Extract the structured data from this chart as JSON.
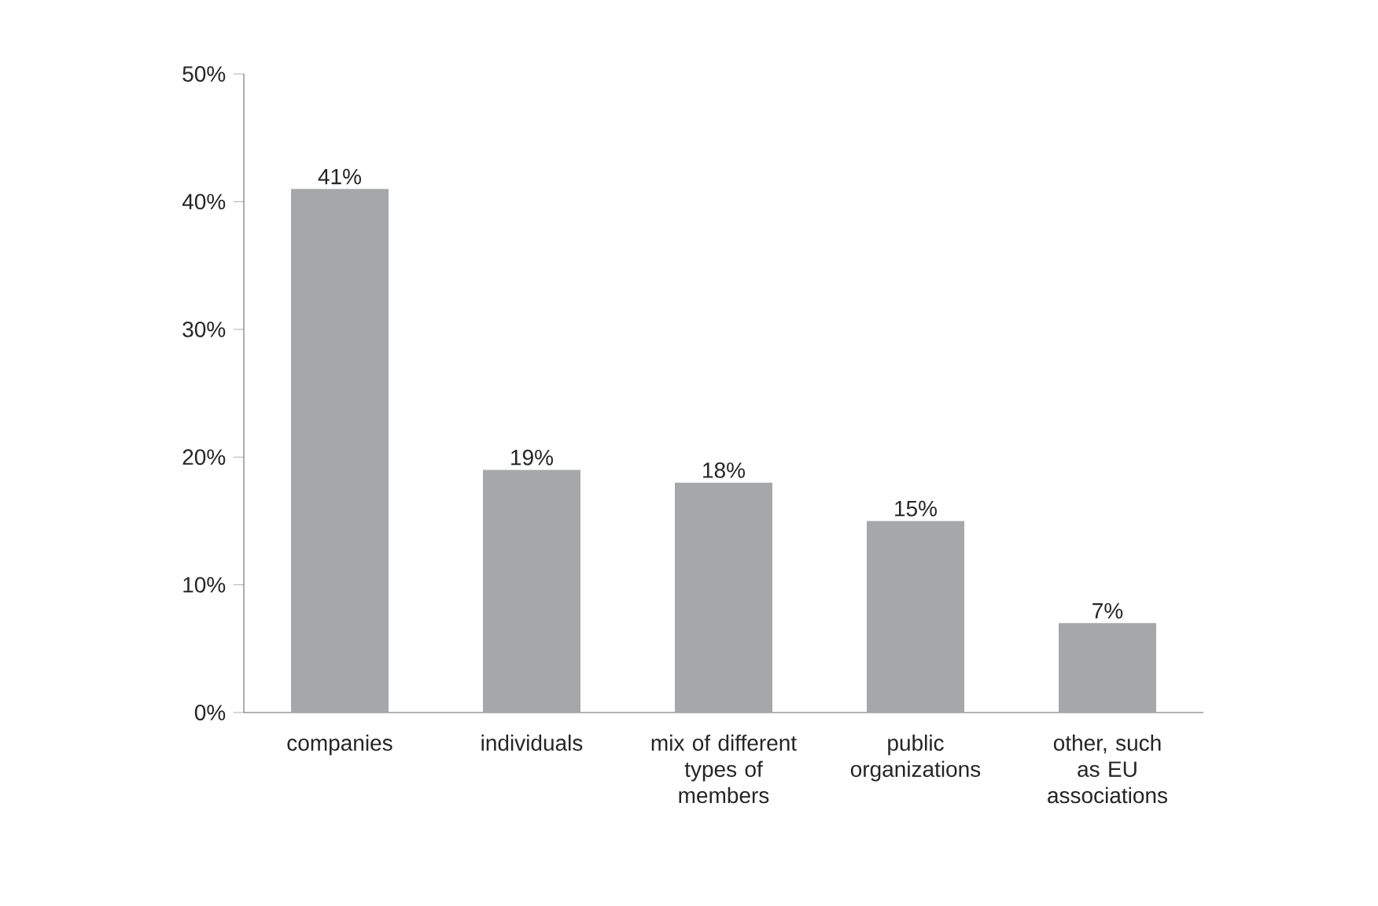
{
  "chart_data": {
    "type": "bar",
    "categories": [
      "companies",
      "individuals",
      "mix of different types of members",
      "public organizations",
      "other, such as EU associations"
    ],
    "values": [
      41,
      19,
      18,
      15,
      7
    ],
    "value_labels": [
      "41%",
      "19%",
      "18%",
      "15%",
      "7%"
    ],
    "color": "#a6a7a9",
    "ylim": [
      0,
      50
    ],
    "yticks": [
      {
        "value": 0,
        "label": "0%"
      },
      {
        "value": 10,
        "label": "10%"
      },
      {
        "value": 20,
        "label": "20%"
      },
      {
        "value": 30,
        "label": "30%"
      },
      {
        "value": 40,
        "label": "40%"
      },
      {
        "value": 50,
        "label": "50%"
      }
    ],
    "grid": false
  }
}
